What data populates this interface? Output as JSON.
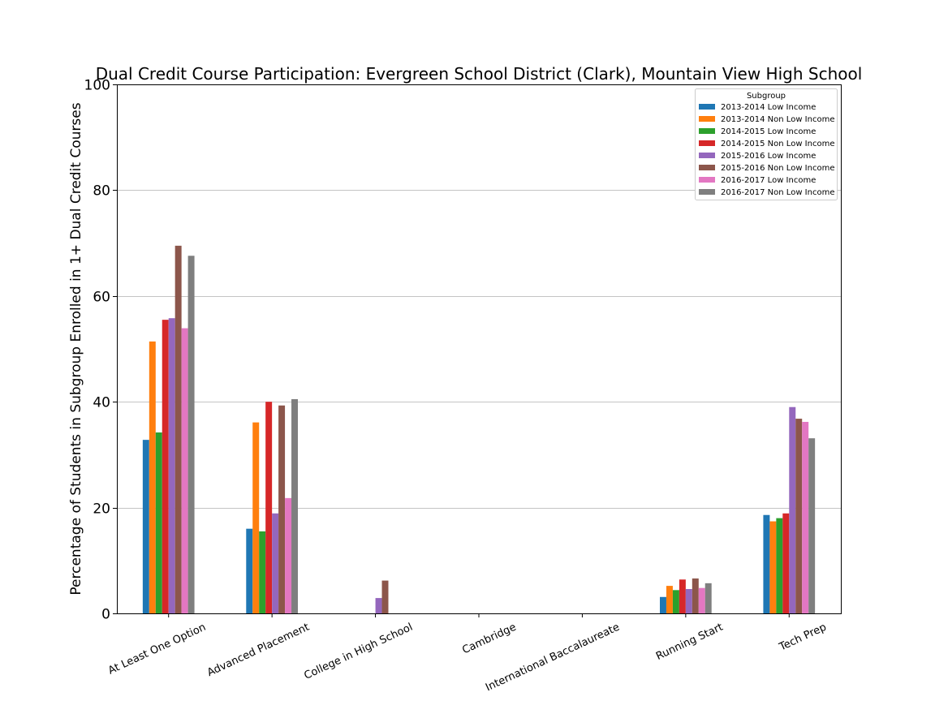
{
  "chart_data": {
    "type": "bar",
    "title": "Dual Credit Course Participation: Evergreen School District (Clark), Mountain View High School",
    "xlabel": "",
    "ylabel": "Percentage of Students in Subgroup Enrolled in 1+ Dual Credit Courses",
    "ylim": [
      0,
      100
    ],
    "yticks": [
      0,
      20,
      40,
      60,
      80,
      100
    ],
    "grid": "horizontal",
    "legend": {
      "title": "Subgroup",
      "placement": "top-right"
    },
    "categories": [
      "At Least One Option",
      "Advanced Placement",
      "College in High School",
      "Cambridge",
      "International Baccalaureate",
      "Running Start",
      "Tech Prep"
    ],
    "series": [
      {
        "name": "2013-2014 Low Income",
        "color": "#1f77b4",
        "values": [
          32.8,
          16.0,
          0,
          0,
          0,
          3.1,
          18.6
        ]
      },
      {
        "name": "2013-2014 Non Low Income",
        "color": "#ff7f0e",
        "values": [
          51.4,
          36.1,
          0,
          0,
          0,
          5.2,
          17.4
        ]
      },
      {
        "name": "2014-2015 Low Income",
        "color": "#2ca02c",
        "values": [
          34.2,
          15.5,
          0,
          0,
          0,
          4.4,
          18.0
        ]
      },
      {
        "name": "2014-2015 Non Low Income",
        "color": "#d62728",
        "values": [
          55.5,
          40.0,
          0,
          0,
          0,
          6.4,
          18.9
        ]
      },
      {
        "name": "2015-2016 Low Income",
        "color": "#9467bd",
        "values": [
          55.8,
          18.9,
          2.9,
          0,
          0,
          4.6,
          39.0
        ]
      },
      {
        "name": "2015-2016 Non Low Income",
        "color": "#8c564b",
        "values": [
          69.5,
          39.3,
          6.2,
          0,
          0,
          6.6,
          36.8
        ]
      },
      {
        "name": "2016-2017 Low Income",
        "color": "#e377c2",
        "values": [
          53.9,
          21.8,
          0,
          0,
          0,
          4.8,
          36.2
        ]
      },
      {
        "name": "2016-2017 Non Low Income",
        "color": "#7f7f7f",
        "values": [
          67.6,
          40.5,
          0,
          0,
          0,
          5.7,
          33.1
        ]
      }
    ]
  }
}
